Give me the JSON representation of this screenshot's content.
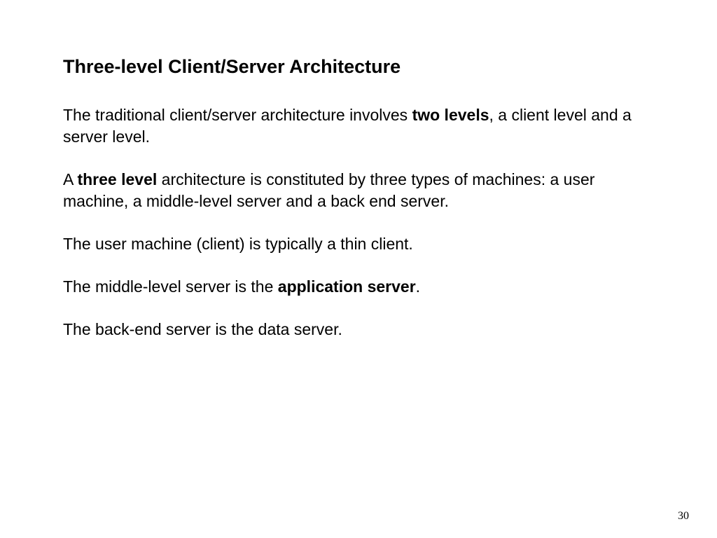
{
  "slide": {
    "title": "Three-level Client/Server Architecture",
    "p1_pre": "The traditional client/server architecture involves ",
    "p1_bold": "two levels",
    "p1_post": ", a client level and a server level.",
    "p2_pre": "A ",
    "p2_bold": "three level",
    "p2_post": " architecture is constituted by three types of machines: a user machine, a middle-level server and a back end server.",
    "p3": "The user machine (client) is typically a thin client.",
    "p4_pre": "The middle-level server is the ",
    "p4_bold": "application server",
    "p4_post": ".",
    "p5": "The back-end server is the data server.",
    "page_number": "30"
  },
  "style": {
    "background_color": "#ffffff",
    "text_color": "#000000",
    "title_fontsize": 27,
    "body_fontsize": 23,
    "pagenum_fontsize": 16,
    "font_family": "Verdana, Geneva, sans-serif",
    "pagenum_font_family": "Times New Roman, Times, serif"
  }
}
